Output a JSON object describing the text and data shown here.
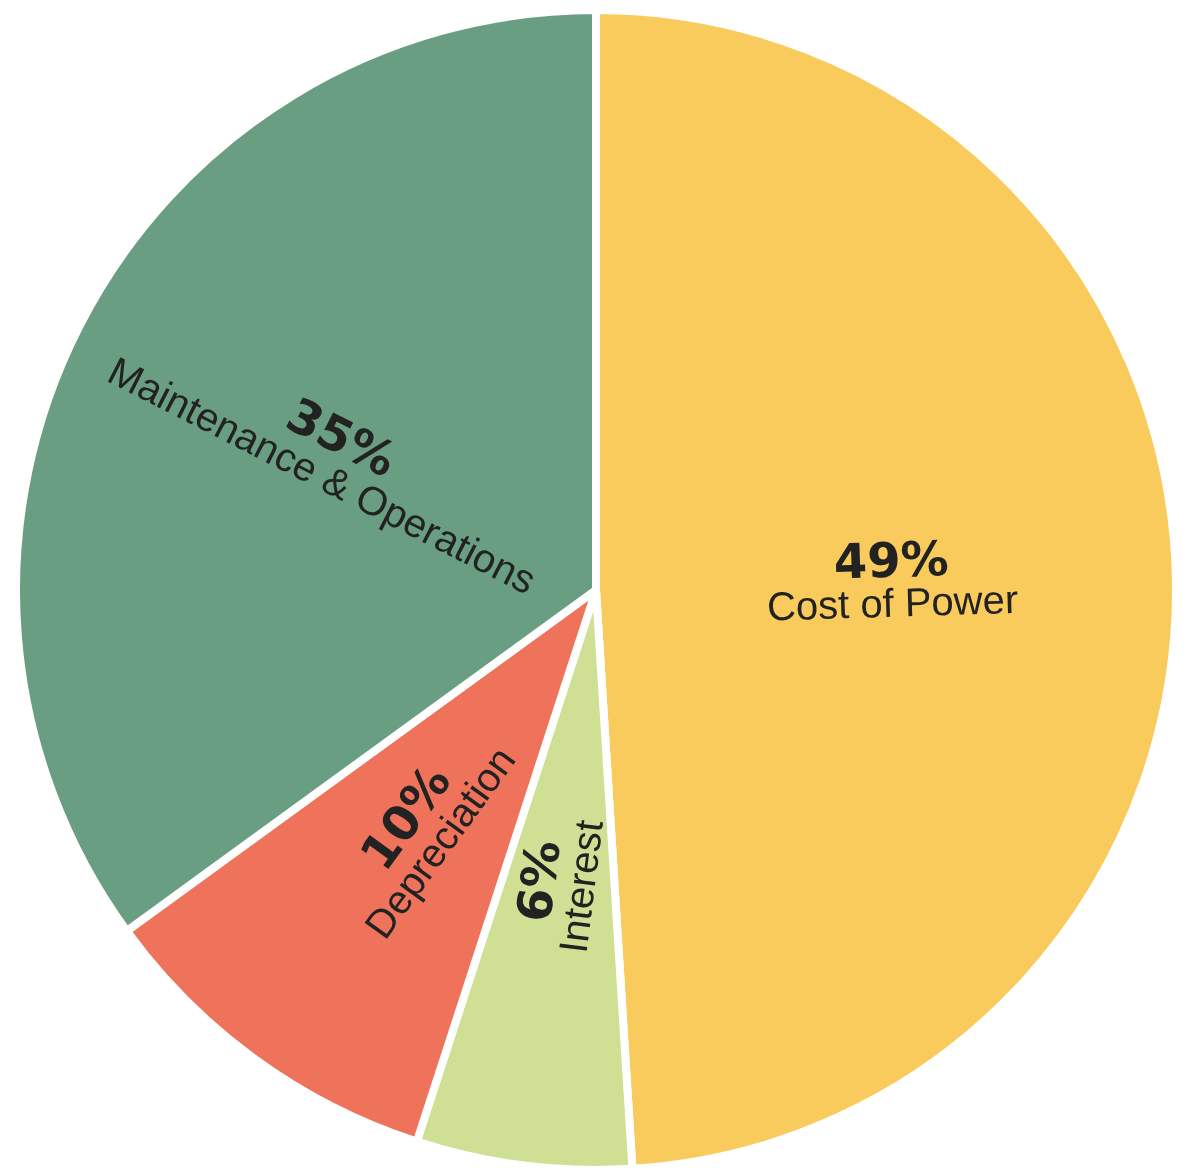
{
  "chart_data": {
    "type": "pie",
    "categories": [
      "Cost of Power",
      "Interest",
      "Depreciation",
      "Maintenance & Operations"
    ],
    "values": [
      49,
      6,
      10,
      35
    ],
    "value_labels": [
      "49%",
      "6%",
      "10%",
      "35%"
    ],
    "colors": [
      "#f9cb5c",
      "#cfdf94",
      "#ef735b",
      "#6a9e82"
    ],
    "legend": false
  }
}
